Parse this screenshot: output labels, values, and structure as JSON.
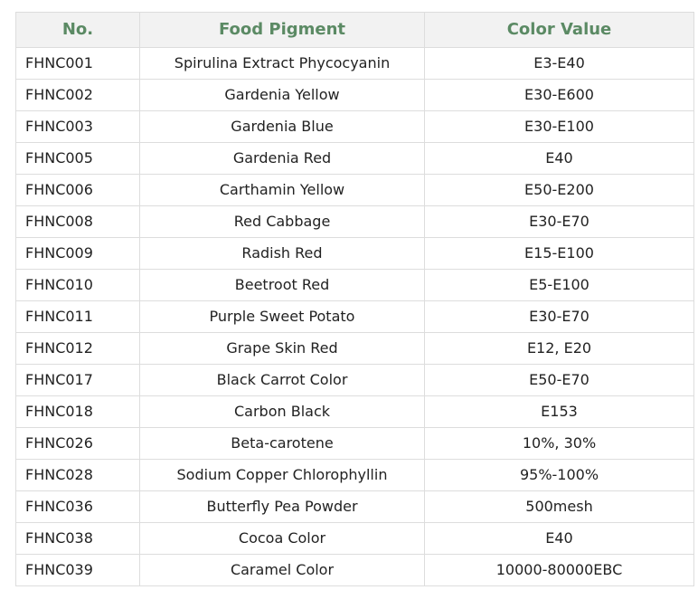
{
  "table": {
    "headers": [
      "No.",
      "Food Pigment",
      "Color Value"
    ],
    "rows": [
      [
        "FHNC001",
        "Spirulina Extract Phycocyanin",
        "E3-E40"
      ],
      [
        "FHNC002",
        "Gardenia Yellow",
        "E30-E600"
      ],
      [
        "FHNC003",
        "Gardenia Blue",
        "E30-E100"
      ],
      [
        "FHNC005",
        "Gardenia Red",
        "E40"
      ],
      [
        "FHNC006",
        "Carthamin Yellow",
        "E50-E200"
      ],
      [
        "FHNC008",
        "Red Cabbage",
        "E30-E70"
      ],
      [
        "FHNC009",
        "Radish Red",
        "E15-E100"
      ],
      [
        "FHNC010",
        "Beetroot Red",
        "E5-E100"
      ],
      [
        "FHNC011",
        "Purple Sweet Potato",
        "E30-E70"
      ],
      [
        "FHNC012",
        "Grape Skin Red",
        "E12, E20"
      ],
      [
        "FHNC017",
        "Black Carrot Color",
        "E50-E70"
      ],
      [
        "FHNC018",
        "Carbon Black",
        "E153"
      ],
      [
        "FHNC026",
        "Beta-carotene",
        "10%, 30%"
      ],
      [
        "FHNC028",
        "Sodium Copper Chlorophyllin",
        "95%-100%"
      ],
      [
        "FHNC036",
        "Butterfly Pea Powder",
        "500mesh"
      ],
      [
        "FHNC038",
        "Cocoa Color",
        "E40"
      ],
      [
        "FHNC039",
        "Caramel Color",
        "10000-80000EBC"
      ]
    ]
  },
  "colors": {
    "header_text": "#5b8a64",
    "header_bg": "#f2f2f2",
    "border": "#dddddd"
  }
}
